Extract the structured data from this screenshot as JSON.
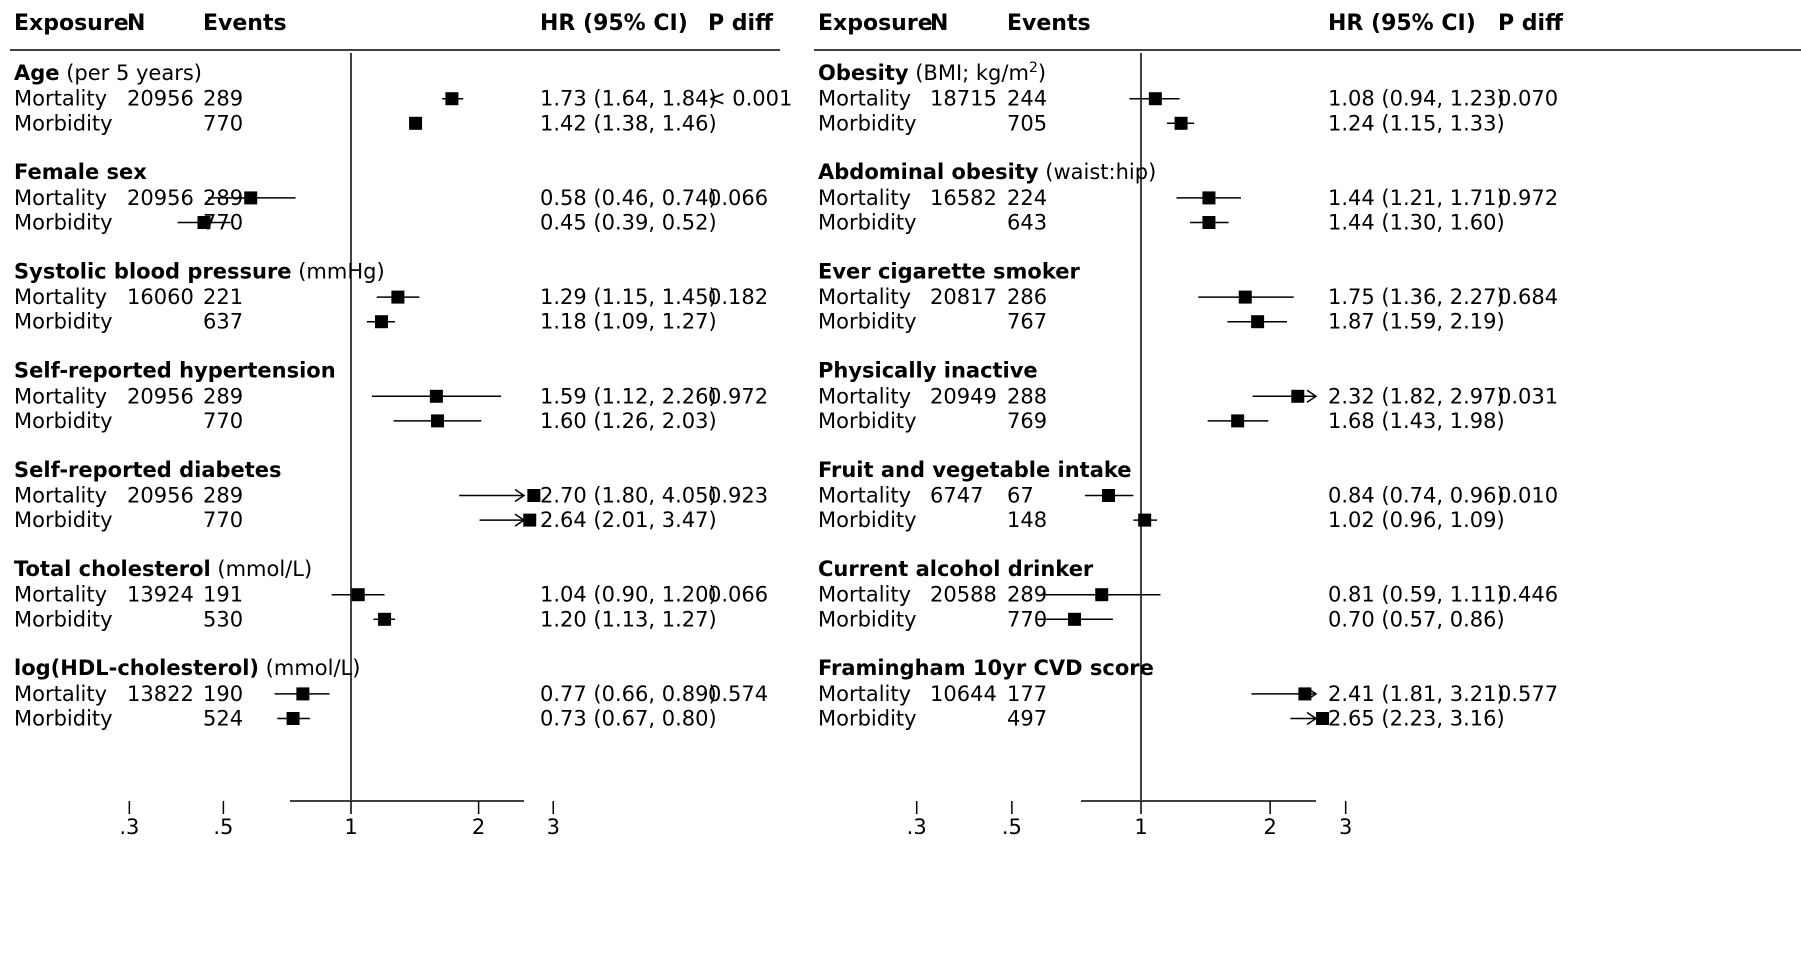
{
  "chart_data": [
    {
      "type": "forest",
      "columns": {
        "exposure": "Exposure",
        "n": "N",
        "events": "Events",
        "hr": "HR (95% CI)",
        "pdiff": "P diff"
      },
      "x_ticks": [
        ".3",
        ".5",
        "1",
        "2",
        "3"
      ],
      "x_tick_values": [
        0.3,
        0.5,
        1,
        2,
        3
      ],
      "x_scale": "log",
      "groups": [
        {
          "name": "Age",
          "unit": " (per 5 years)",
          "unit_sup": "",
          "rows": [
            {
              "outcome": "Mortality",
              "n": "20956",
              "events": "289",
              "hr": 1.73,
              "lo": 1.64,
              "hi": 1.84,
              "label": "1.73 (1.64, 1.84)",
              "p": "< 0.001"
            },
            {
              "outcome": "Morbidity",
              "n": "",
              "events": "770",
              "hr": 1.42,
              "lo": 1.38,
              "hi": 1.46,
              "label": "1.42 (1.38, 1.46)",
              "p": ""
            }
          ]
        },
        {
          "name": "Female sex",
          "unit": "",
          "unit_sup": "",
          "rows": [
            {
              "outcome": "Mortality",
              "n": "20956",
              "events": "289",
              "hr": 0.58,
              "lo": 0.46,
              "hi": 0.74,
              "label": "0.58 (0.46, 0.74)",
              "p": "0.066"
            },
            {
              "outcome": "Morbidity",
              "n": "",
              "events": "770",
              "hr": 0.45,
              "lo": 0.39,
              "hi": 0.52,
              "label": "0.45 (0.39, 0.52)",
              "p": ""
            }
          ]
        },
        {
          "name": "Systolic blood pressure",
          "unit": " (mmHg)",
          "unit_sup": "",
          "rows": [
            {
              "outcome": "Mortality",
              "n": "16060",
              "events": "221",
              "hr": 1.29,
              "lo": 1.15,
              "hi": 1.45,
              "label": "1.29 (1.15, 1.45)",
              "p": "0.182"
            },
            {
              "outcome": "Morbidity",
              "n": "",
              "events": "637",
              "hr": 1.18,
              "lo": 1.09,
              "hi": 1.27,
              "label": "1.18 (1.09, 1.27)",
              "p": ""
            }
          ]
        },
        {
          "name": "Self-reported hypertension",
          "unit": "",
          "unit_sup": "",
          "rows": [
            {
              "outcome": "Mortality",
              "n": "20956",
              "events": "289",
              "hr": 1.59,
              "lo": 1.12,
              "hi": 2.26,
              "label": "1.59 (1.12, 2.26)",
              "p": "0.972"
            },
            {
              "outcome": "Morbidity",
              "n": "",
              "events": "770",
              "hr": 1.6,
              "lo": 1.26,
              "hi": 2.03,
              "label": "1.60 (1.26, 2.03)",
              "p": ""
            }
          ]
        },
        {
          "name": "Self-reported diabetes",
          "unit": "",
          "unit_sup": "",
          "rows": [
            {
              "outcome": "Mortality",
              "n": "20956",
              "events": "289",
              "hr": 2.7,
              "lo": 1.8,
              "hi": 4.05,
              "label": "2.70 (1.80, 4.05)",
              "p": "0.923"
            },
            {
              "outcome": "Morbidity",
              "n": "",
              "events": "770",
              "hr": 2.64,
              "lo": 2.01,
              "hi": 3.47,
              "label": "2.64 (2.01, 3.47)",
              "p": ""
            }
          ]
        },
        {
          "name": "Total cholesterol",
          "unit": " (mmol/L)",
          "unit_sup": "",
          "rows": [
            {
              "outcome": "Mortality",
              "n": "13924",
              "events": "191",
              "hr": 1.04,
              "lo": 0.9,
              "hi": 1.2,
              "label": "1.04 (0.90, 1.20)",
              "p": "0.066"
            },
            {
              "outcome": "Morbidity",
              "n": "",
              "events": "530",
              "hr": 1.2,
              "lo": 1.13,
              "hi": 1.27,
              "label": "1.20 (1.13, 1.27)",
              "p": ""
            }
          ]
        },
        {
          "name": "log(HDL-cholesterol)",
          "unit": " (mmol/L)",
          "unit_sup": "",
          "rows": [
            {
              "outcome": "Mortality",
              "n": "13822",
              "events": "190",
              "hr": 0.77,
              "lo": 0.66,
              "hi": 0.89,
              "label": "0.77 (0.66, 0.89)",
              "p": "0.574"
            },
            {
              "outcome": "Morbidity",
              "n": "",
              "events": "524",
              "hr": 0.73,
              "lo": 0.67,
              "hi": 0.8,
              "label": "0.73 (0.67, 0.80)",
              "p": ""
            }
          ]
        }
      ]
    },
    {
      "type": "forest",
      "columns": {
        "exposure": "Exposure",
        "n": "N",
        "events": "Events",
        "hr": "HR (95% CI)",
        "pdiff": "P diff"
      },
      "x_ticks": [
        ".3",
        ".5",
        "1",
        "2",
        "3"
      ],
      "x_tick_values": [
        0.3,
        0.5,
        1,
        2,
        3
      ],
      "x_scale": "log",
      "groups": [
        {
          "name": "Obesity",
          "unit": " (BMI; kg/m",
          "unit_sup": "2",
          "rows": [
            {
              "outcome": "Mortality",
              "n": "18715",
              "events": "244",
              "hr": 1.08,
              "lo": 0.94,
              "hi": 1.23,
              "label": "1.08 (0.94, 1.23)",
              "p": "0.070"
            },
            {
              "outcome": "Morbidity",
              "n": "",
              "events": "705",
              "hr": 1.24,
              "lo": 1.15,
              "hi": 1.33,
              "label": "1.24 (1.15, 1.33)",
              "p": ""
            }
          ]
        },
        {
          "name": "Abdominal obesity",
          "unit": " (waist:hip)",
          "unit_sup": "",
          "rows": [
            {
              "outcome": "Mortality",
              "n": "16582",
              "events": "224",
              "hr": 1.44,
              "lo": 1.21,
              "hi": 1.71,
              "label": "1.44 (1.21, 1.71)",
              "p": "0.972"
            },
            {
              "outcome": "Morbidity",
              "n": "",
              "events": "643",
              "hr": 1.44,
              "lo": 1.3,
              "hi": 1.6,
              "label": "1.44 (1.30, 1.60)",
              "p": ""
            }
          ]
        },
        {
          "name": "Ever cigarette smoker",
          "unit": "",
          "unit_sup": "",
          "rows": [
            {
              "outcome": "Mortality",
              "n": "20817",
              "events": "286",
              "hr": 1.75,
              "lo": 1.36,
              "hi": 2.27,
              "label": "1.75 (1.36, 2.27)",
              "p": "0.684"
            },
            {
              "outcome": "Morbidity",
              "n": "",
              "events": "767",
              "hr": 1.87,
              "lo": 1.59,
              "hi": 2.19,
              "label": "1.87 (1.59, 2.19)",
              "p": ""
            }
          ]
        },
        {
          "name": "Physically inactive",
          "unit": "",
          "unit_sup": "",
          "rows": [
            {
              "outcome": "Mortality",
              "n": "20949",
              "events": "288",
              "hr": 2.32,
              "lo": 1.82,
              "hi": 2.97,
              "label": "2.32 (1.82, 2.97)",
              "p": "0.031"
            },
            {
              "outcome": "Morbidity",
              "n": "",
              "events": "769",
              "hr": 1.68,
              "lo": 1.43,
              "hi": 1.98,
              "label": "1.68 (1.43, 1.98)",
              "p": ""
            }
          ]
        },
        {
          "name": "Fruit and vegetable intake",
          "unit": "",
          "unit_sup": "",
          "rows": [
            {
              "outcome": "Mortality",
              "n": "6747",
              "events": "67",
              "hr": 0.84,
              "lo": 0.74,
              "hi": 0.96,
              "label": "0.84 (0.74, 0.96)",
              "p": "0.010"
            },
            {
              "outcome": "Morbidity",
              "n": "",
              "events": "148",
              "hr": 1.02,
              "lo": 0.96,
              "hi": 1.09,
              "label": "1.02 (0.96, 1.09)",
              "p": ""
            }
          ]
        },
        {
          "name": "Current alcohol drinker",
          "unit": "",
          "unit_sup": "",
          "rows": [
            {
              "outcome": "Mortality",
              "n": "20588",
              "events": "289",
              "hr": 0.81,
              "lo": 0.59,
              "hi": 1.11,
              "label": "0.81 (0.59, 1.11)",
              "p": "0.446"
            },
            {
              "outcome": "Morbidity",
              "n": "",
              "events": "770",
              "hr": 0.7,
              "lo": 0.57,
              "hi": 0.86,
              "label": "0.70 (0.57, 0.86)",
              "p": ""
            }
          ]
        },
        {
          "name": "Framingham 10yr CVD score",
          "unit": "",
          "unit_sup": "",
          "rows": [
            {
              "outcome": "Mortality",
              "n": "10644",
              "events": "177",
              "hr": 2.41,
              "lo": 1.81,
              "hi": 3.21,
              "label": "2.41 (1.81, 3.21)",
              "p": "0.577"
            },
            {
              "outcome": "Morbidity",
              "n": "",
              "events": "497",
              "hr": 2.65,
              "lo": 2.23,
              "hi": 3.16,
              "label": "2.65 (2.23, 3.16)",
              "p": ""
            }
          ]
        }
      ]
    }
  ]
}
